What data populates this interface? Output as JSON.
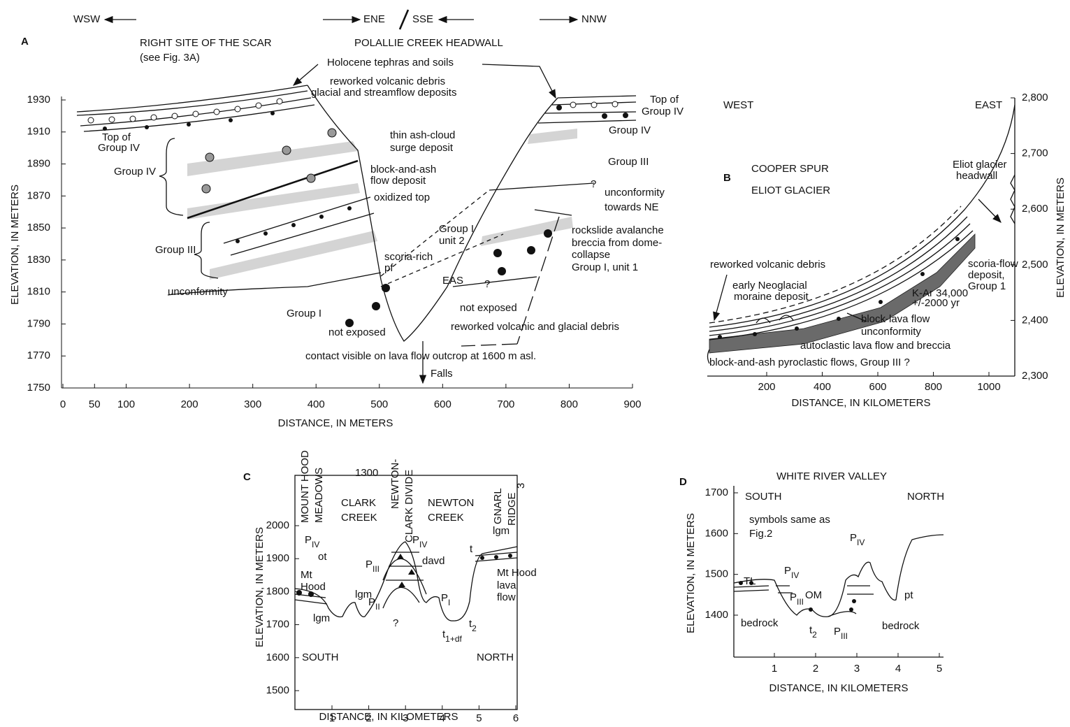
{
  "panels": {
    "A": {
      "label": "A",
      "directions": [
        "WSW",
        "ENE",
        "SSE",
        "NNW"
      ],
      "headers": [
        "RIGHT SITE OF THE SCAR",
        "(see Fig. 3A)",
        "POLALLIE CREEK HEADWALL"
      ],
      "y_label": "ELEVATION, IN METERS",
      "x_label": "DISTANCE, IN METERS",
      "yticks": [
        1930,
        1910,
        1890,
        1870,
        1850,
        1830,
        1810,
        1790,
        1770,
        1750
      ],
      "xticks": [
        0,
        50,
        100,
        200,
        300,
        400,
        500,
        600,
        700,
        800,
        900
      ],
      "annotations": [
        "Holocene tephras and soils",
        "reworked volcanic debris",
        "glacial and streamflow deposits",
        "Top of",
        "Group IV",
        "Top of",
        "Group IV",
        "Group IV",
        "thin ash-cloud",
        "surge deposit",
        "Group III",
        "block-and-ash",
        "flow deposit",
        "Group IV",
        "unconformity",
        "towards NE",
        "oxidized top",
        "Group I",
        "unit 2",
        "rockslide avalanche",
        "breccia from dome-",
        "collapse",
        "Group I, unit 1",
        "Group III",
        "scoria-rich",
        "pf",
        "unconformity",
        "EAS",
        "?",
        "?",
        "not exposed",
        "Group I",
        "reworked volcanic and glacial debris",
        "not exposed",
        "contact visible on lava flow outcrop at 1600 m asl.",
        "Falls"
      ]
    },
    "B": {
      "label": "B",
      "y_label": "ELEVATION, IN METERS",
      "x_label": "DISTANCE, IN KILOMETERS",
      "yticks": [
        "2,800",
        "2,700",
        "2,600",
        "2,500",
        "2,400",
        "2,300"
      ],
      "xticks": [
        200,
        400,
        600,
        800,
        1000
      ],
      "annotations": [
        "WEST",
        "EAST",
        "COOPER SPUR",
        "ELIOT GLACIER",
        "Eliot glacier",
        "headwall",
        "reworked volcanic debris",
        "early Neoglacial",
        "moraine deposit",
        "scoria-flow",
        "deposit,",
        "Group 1",
        "K-Ar 34,000",
        "+/-2000 yr",
        "block-lava flow",
        "unconformity",
        "autoclastic lava flow and breccia",
        "block-and-ash pyroclastic flows, Group III ?"
      ]
    },
    "C": {
      "label": "C",
      "y_label": "ELEVATION, IN METERS",
      "x_label": "DISTANCE, IN KILOMETERS",
      "yticks": [
        2000,
        1900,
        1800,
        1700,
        1600,
        1500
      ],
      "xticks": [
        1,
        2,
        3,
        4,
        5,
        6
      ],
      "vertical_labels": [
        "MOUNT HOOD",
        "MEADOWS",
        "NEWTON-",
        "CLARK DIVIDE",
        "GNARL",
        "RIDGE",
        "3"
      ],
      "annotations": [
        "1300",
        "CLARK",
        "CREEK",
        "NEWTON",
        "CREEK",
        "ot",
        "davd",
        "t",
        "lgm",
        "Mt",
        "Hood",
        "Mt Hood",
        "lava",
        "flow",
        "lgm",
        "?",
        "lgm",
        "SOUTH",
        "NORTH"
      ],
      "symbols": [
        {
          "base": "P",
          "sub": "IV"
        },
        {
          "base": "P",
          "sub": "IV"
        },
        {
          "base": "P",
          "sub": "III"
        },
        {
          "base": "P",
          "sub": "II"
        },
        {
          "base": "P",
          "sub": "I"
        },
        {
          "base": "t",
          "sub": "2"
        },
        {
          "base": "t",
          "sub": "1+df"
        }
      ]
    },
    "D": {
      "label": "D",
      "title": "WHITE RIVER VALLEY",
      "y_label": "ELEVATION, IN METERS",
      "x_label": "DISTANCE, IN KILOMETERS",
      "yticks": [
        1700,
        1600,
        1500,
        1400
      ],
      "xticks": [
        1,
        2,
        3,
        4,
        5
      ],
      "annotations": [
        "SOUTH",
        "NORTH",
        "symbols same as",
        "Fig.2",
        "TL",
        "OM",
        "pt",
        "bedrock",
        "bedrock"
      ],
      "symbols": [
        {
          "base": "P",
          "sub": "IV"
        },
        {
          "base": "P",
          "sub": "III"
        },
        {
          "base": "P",
          "sub": "IV"
        },
        {
          "base": "t",
          "sub": "2"
        },
        {
          "base": "P",
          "sub": "III"
        }
      ]
    }
  }
}
